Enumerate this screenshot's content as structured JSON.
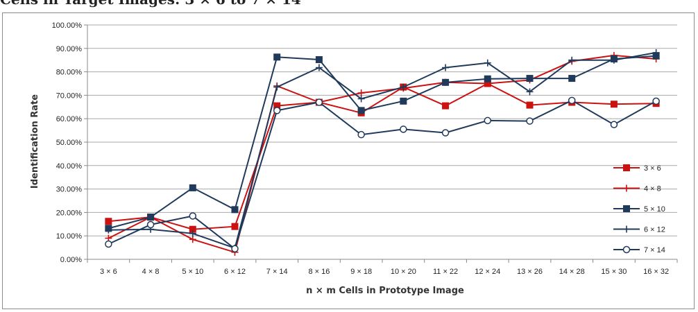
{
  "caption": "Cells in Target Images: 3 × 6 to 7 × 14",
  "chart_data": {
    "type": "line",
    "xlabel": "n × m Cells in Prototype Image",
    "ylabel": "Identification Rate",
    "categories": [
      "3 × 6",
      "4 × 8",
      "5 × 10",
      "6 × 12",
      "7 × 14",
      "8 × 16",
      "9 × 18",
      "10 × 20",
      "11 × 22",
      "12 × 24",
      "13 × 26",
      "14 × 28",
      "15 × 30",
      "16 × 32"
    ],
    "yticks": [
      "0.00%",
      "10.00%",
      "20.00%",
      "30.00%",
      "40.00%",
      "50.00%",
      "60.00%",
      "70.00%",
      "80.00%",
      "90.00%",
      "100.00%"
    ],
    "ylim": [
      0,
      100
    ],
    "grid": true,
    "legend_position": "bottom-right",
    "series": [
      {
        "name": "3 × 6",
        "color": "#cc1111",
        "marker": "square",
        "values": [
          16.2,
          18.0,
          12.8,
          14.0,
          65.5,
          67.0,
          62.5,
          73.5,
          65.5,
          75.0,
          65.8,
          67.0,
          66.2,
          66.5
        ]
      },
      {
        "name": "4 × 8",
        "color": "#cc1111",
        "marker": "plus",
        "values": [
          9.0,
          18.0,
          8.5,
          3.0,
          74.0,
          67.0,
          71.0,
          73.0,
          75.5,
          75.0,
          76.5,
          84.5,
          87.0,
          85.5
        ]
      },
      {
        "name": "5 × 10",
        "color": "#1f3a5a",
        "marker": "square",
        "values": [
          13.2,
          18.0,
          30.5,
          21.2,
          86.3,
          85.2,
          63.5,
          67.5,
          75.5,
          77.0,
          77.2,
          77.2,
          85.5,
          86.8
        ]
      },
      {
        "name": "6 × 12",
        "color": "#1f3a5a",
        "marker": "plus",
        "values": [
          12.5,
          12.8,
          11.0,
          4.8,
          73.5,
          81.8,
          68.5,
          73.5,
          81.8,
          83.8,
          71.5,
          85.0,
          85.0,
          88.2
        ]
      },
      {
        "name": "7 × 14",
        "color": "#1f3a5a",
        "marker": "circle",
        "values": [
          6.5,
          14.8,
          18.5,
          4.5,
          63.5,
          67.0,
          53.2,
          55.5,
          54.0,
          59.2,
          59.0,
          67.8,
          57.5,
          67.5
        ]
      }
    ]
  }
}
